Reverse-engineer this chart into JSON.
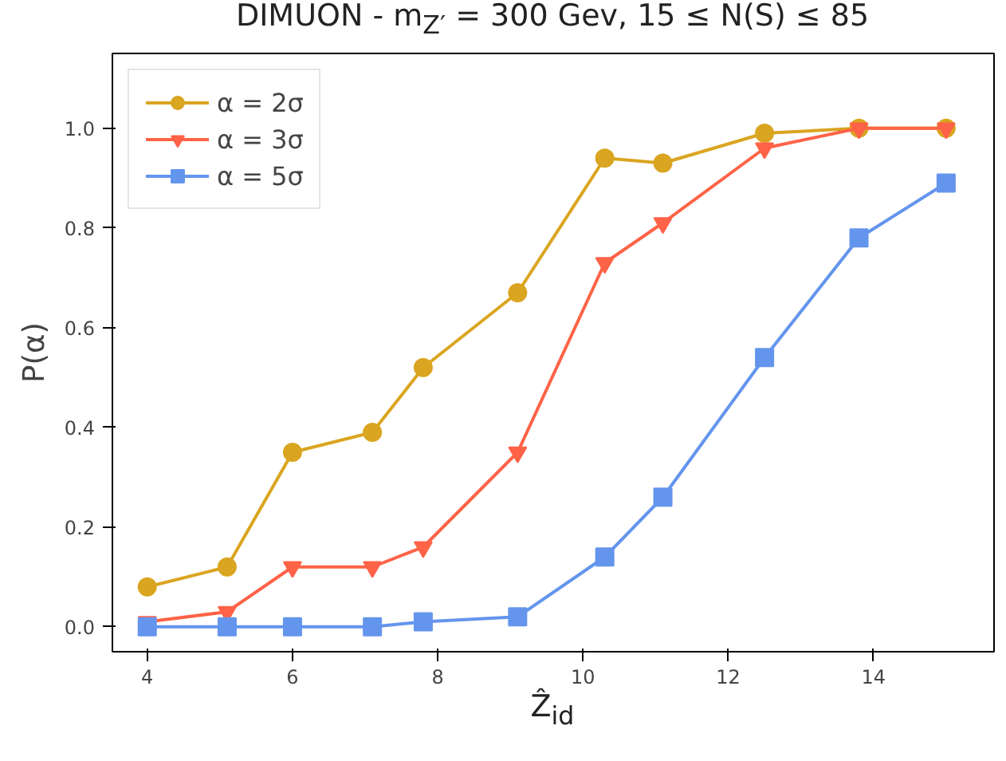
{
  "chart_data": {
    "type": "line",
    "title": "DIMUON - m$_{Z′}$ = 300 Gev, 15 ≤ N(S) ≤ 85",
    "xlabel": "Ẑ$_{id}$",
    "ylabel": "P(α)",
    "x": [
      4,
      5.1,
      6.0,
      7.1,
      7.8,
      9.1,
      10.3,
      11.1,
      12.5,
      13.8,
      15.0
    ],
    "series": [
      {
        "name": "α = 2σ",
        "color": "#daa520",
        "marker": "circle",
        "values": [
          0.08,
          0.12,
          0.35,
          0.39,
          0.52,
          0.67,
          0.94,
          0.93,
          0.99,
          1.0,
          1.0
        ]
      },
      {
        "name": "α = 3σ",
        "color": "#ff6347",
        "marker": "triangle",
        "values": [
          0.01,
          0.03,
          0.12,
          0.12,
          0.16,
          0.35,
          0.73,
          0.81,
          0.96,
          1.0,
          1.0
        ]
      },
      {
        "name": "α = 5σ",
        "color": "#6495ed",
        "marker": "square",
        "values": [
          0,
          0,
          0,
          0,
          0.01,
          0.02,
          0.14,
          0.26,
          0.54,
          0.78,
          0.89
        ]
      }
    ],
    "xlim": [
      3.52,
      15.66
    ],
    "ylim": [
      -0.05,
      1.15
    ],
    "xticks": [
      4,
      6,
      8,
      10,
      12,
      14
    ],
    "yticks": [
      {
        "value": 0,
        "label": "0.0"
      },
      {
        "value": 0.2,
        "label": "0.2"
      },
      {
        "value": 0.4,
        "label": "0.4"
      },
      {
        "value": 0.6,
        "label": "0.6"
      },
      {
        "value": 0.8,
        "label": "0.8"
      },
      {
        "value": 1.0,
        "label": "1.0"
      }
    ],
    "grid": false,
    "legend": "top left",
    "line_style": "solid"
  }
}
